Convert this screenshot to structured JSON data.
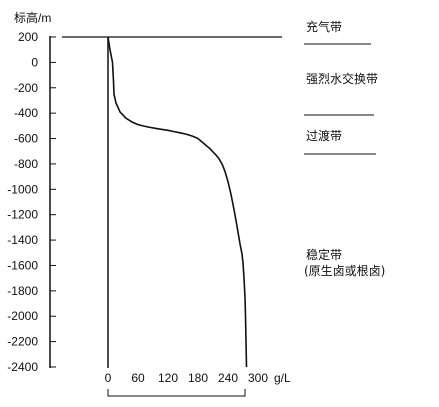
{
  "chart_data": {
    "type": "line",
    "title": "",
    "ylabel": "标高/m",
    "xlabel": "g/L",
    "xlim": [
      0,
      300
    ],
    "ylim": [
      -2400,
      200
    ],
    "x_ticks": [
      0,
      60,
      120,
      180,
      240,
      300
    ],
    "x_tick_labels": [
      "0",
      "60",
      "120",
      "180",
      "240",
      "300"
    ],
    "y_ticks": [
      200,
      0,
      -200,
      -400,
      -600,
      -800,
      -1000,
      -1200,
      -1400,
      -1600,
      -1800,
      -2000,
      -2200,
      -2400
    ],
    "y_tick_labels": [
      "200",
      "0",
      "-200",
      "-400",
      "-600",
      "-800",
      "-1000",
      "-1200",
      "-1400",
      "-1600",
      "-1800",
      "-2000",
      "-2200",
      "-2400"
    ],
    "grid": false,
    "series": [
      {
        "x": [
          0,
          4,
          9,
          11,
          12,
          16,
          24,
          36,
          48,
          60,
          72,
          84,
          96,
          108,
          120,
          132,
          144,
          156,
          168,
          176,
          180,
          186,
          192,
          198,
          204,
          210,
          216,
          222,
          228,
          234,
          240,
          246,
          252,
          258,
          264,
          268,
          270,
          272,
          274,
          275,
          276,
          277
        ],
        "y": [
          200,
          100,
          0,
          -150,
          -250,
          -320,
          -390,
          -440,
          -470,
          -490,
          -502,
          -512,
          -520,
          -528,
          -535,
          -545,
          -555,
          -565,
          -580,
          -593,
          -600,
          -620,
          -640,
          -660,
          -680,
          -705,
          -730,
          -760,
          -800,
          -860,
          -940,
          -1040,
          -1160,
          -1290,
          -1430,
          -1510,
          -1580,
          -1700,
          -1850,
          -2000,
          -2200,
          -2400
        ]
      }
    ],
    "zones": [
      {
        "label": "充气带"
      },
      {
        "label": "强烈水交换带"
      },
      {
        "label": "过渡带"
      },
      {
        "label": "稳定带"
      },
      {
        "label": "(原生卤或根卤)"
      }
    ]
  }
}
